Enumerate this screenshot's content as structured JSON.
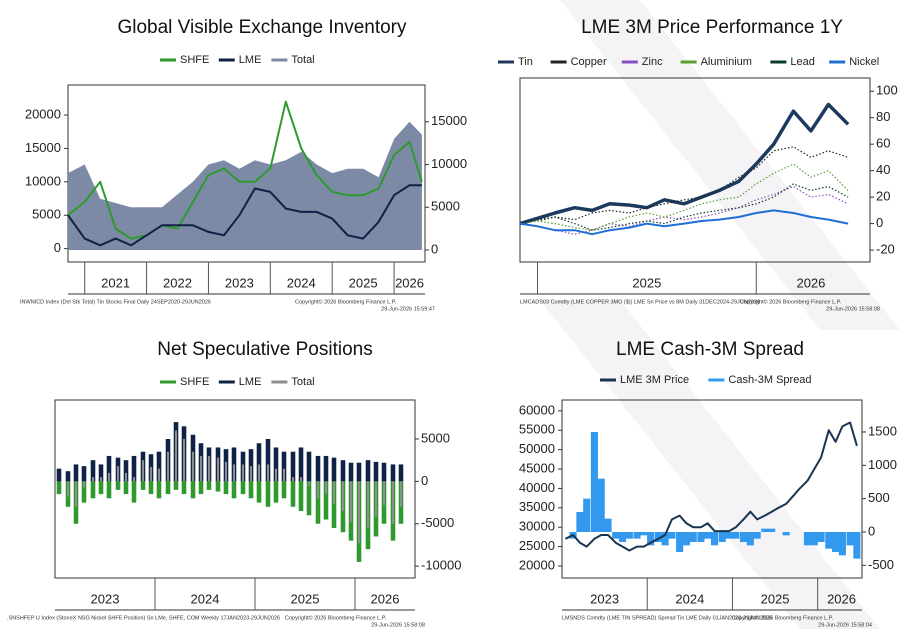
{
  "chart_data": [
    {
      "type": "line",
      "title": "Global Visible Exchange Inventory",
      "x": [
        2020.73,
        2021.0,
        2021.25,
        2021.5,
        2021.75,
        2022.0,
        2022.25,
        2022.5,
        2022.75,
        2023.0,
        2023.25,
        2023.5,
        2023.75,
        2024.0,
        2024.25,
        2024.5,
        2024.75,
        2025.0,
        2025.25,
        2025.5,
        2025.75,
        2026.0,
        2026.25,
        2026.45
      ],
      "series": [
        {
          "name": "SHFE",
          "color": "#2e9a2e",
          "style": "line",
          "values": [
            5000,
            7000,
            10000,
            3000,
            1500,
            2000,
            3500,
            3000,
            7000,
            11000,
            12000,
            10000,
            10000,
            12000,
            22000,
            15000,
            11000,
            8500,
            8000,
            8000,
            9000,
            14000,
            16000,
            10000
          ]
        },
        {
          "name": "LME",
          "color": "#0f2147",
          "style": "line",
          "values": [
            5000,
            1500,
            500,
            1500,
            500,
            2000,
            3500,
            3500,
            3500,
            2500,
            2000,
            5000,
            9000,
            8500,
            6000,
            5500,
            5500,
            4500,
            2000,
            1500,
            4000,
            8000,
            9500,
            9500
          ]
        },
        {
          "name": "Total",
          "color": "#7d8aa6",
          "style": "area",
          "axis": "y2",
          "values": [
            9000,
            10000,
            6000,
            5500,
            5000,
            5000,
            5000,
            6500,
            8000,
            10000,
            10500,
            9500,
            10500,
            10000,
            10500,
            11500,
            10000,
            9000,
            9500,
            9500,
            8500,
            13000,
            15000,
            13500
          ]
        }
      ],
      "xlim": [
        2020.73,
        2026.5
      ],
      "xticks": [
        {
          "value": 2021.5,
          "label": "2021"
        },
        {
          "value": 2022.5,
          "label": "2022"
        },
        {
          "value": 2023.5,
          "label": "2023"
        },
        {
          "value": 2024.5,
          "label": "2024"
        },
        {
          "value": 2025.5,
          "label": "2025"
        },
        {
          "value": 2026.25,
          "label": "2026"
        }
      ],
      "ylim": [
        -2000,
        24500
      ],
      "yticks": [
        0,
        5000,
        10000,
        15000,
        20000
      ],
      "y2lim": [
        -1400,
        19300
      ],
      "y2ticks": [
        0,
        5000,
        10000,
        15000
      ],
      "footnotes": [
        "INWNICD Index (Del Stk Total) Tin Stocks Final Daily 24SEP2020-29JUN2026",
        "Copyright© 2026 Bloomberg Finance L.P.",
        "29-Jun-2026 15:59:47"
      ]
    },
    {
      "type": "line",
      "title": "LME 3M Price Performance 1Y",
      "yaxis_side": "right",
      "x": [
        2024.92,
        2025.0,
        2025.08,
        2025.17,
        2025.25,
        2025.33,
        2025.42,
        2025.5,
        2025.58,
        2025.67,
        2025.75,
        2025.83,
        2025.92,
        2026.0,
        2026.08,
        2026.17,
        2026.25,
        2026.33,
        2026.42
      ],
      "series": [
        {
          "name": "Tin",
          "color": "#1b3a5e",
          "style": "thick",
          "values": [
            0,
            4,
            8,
            12,
            10,
            15,
            14,
            12,
            18,
            15,
            20,
            25,
            32,
            45,
            60,
            85,
            70,
            90,
            75
          ]
        },
        {
          "name": "Copper",
          "color": "#222222",
          "style": "dotted",
          "values": [
            0,
            2,
            5,
            3,
            8,
            10,
            8,
            12,
            15,
            18,
            20,
            25,
            35,
            42,
            55,
            58,
            50,
            55,
            50
          ]
        },
        {
          "name": "Zinc",
          "color": "#8a4fc0",
          "style": "dotted",
          "values": [
            0,
            -2,
            -5,
            -8,
            -5,
            0,
            -2,
            2,
            5,
            3,
            5,
            8,
            12,
            18,
            22,
            28,
            20,
            22,
            15
          ]
        },
        {
          "name": "Aluminium",
          "color": "#5aa02c",
          "style": "dotted",
          "values": [
            0,
            2,
            0,
            -3,
            -5,
            0,
            5,
            8,
            5,
            10,
            15,
            18,
            20,
            30,
            38,
            45,
            35,
            40,
            25
          ]
        },
        {
          "name": "Lead",
          "color": "#0d3b2a",
          "style": "dotted",
          "values": [
            0,
            3,
            5,
            0,
            -5,
            -3,
            0,
            2,
            0,
            5,
            8,
            10,
            12,
            15,
            20,
            30,
            25,
            28,
            20
          ]
        },
        {
          "name": "Nickel",
          "color": "#1f6fd6",
          "style": "line",
          "values": [
            0,
            -2,
            -5,
            -5,
            -8,
            -5,
            -3,
            0,
            -2,
            0,
            2,
            3,
            5,
            8,
            10,
            8,
            5,
            3,
            0
          ]
        }
      ],
      "xlim": [
        2024.92,
        2026.52
      ],
      "xticks": [
        {
          "value": 2025.5,
          "label": "2025"
        },
        {
          "value": 2026.25,
          "label": "2026"
        }
      ],
      "ylim": [
        -29,
        110
      ],
      "yticks": [
        -20,
        0,
        20,
        40,
        60,
        80,
        100
      ],
      "footnotes": [
        "LMCADS03 Comdty (LME COPPER   3MO ($)) LME Sn Price vs 8M Daily 31DEC2024-29JUN2026",
        "Copyright© 2026 Bloomberg Finance L.P.",
        "29-Jun-2026 15:58:08"
      ]
    },
    {
      "type": "bar",
      "title": "Net Speculative Positions",
      "yaxis_side": "right",
      "x": [
        2023.04,
        2023.13,
        2023.21,
        2023.29,
        2023.38,
        2023.46,
        2023.54,
        2023.63,
        2023.71,
        2023.79,
        2023.88,
        2023.96,
        2024.04,
        2024.13,
        2024.21,
        2024.29,
        2024.38,
        2024.46,
        2024.54,
        2024.63,
        2024.71,
        2024.79,
        2024.88,
        2024.96,
        2025.04,
        2025.13,
        2025.21,
        2025.29,
        2025.38,
        2025.46,
        2025.54,
        2025.63,
        2025.71,
        2025.79,
        2025.88,
        2025.96,
        2026.04,
        2026.13,
        2026.21,
        2026.29,
        2026.38,
        2026.46
      ],
      "series": [
        {
          "name": "SHFE",
          "color": "#2e9a2e",
          "values": [
            -1500,
            -3000,
            -5000,
            -2500,
            -2000,
            -1500,
            -2000,
            -1000,
            -1500,
            -2500,
            -1000,
            -1500,
            -2000,
            -1500,
            -1000,
            -1500,
            -2000,
            -1500,
            -1000,
            -1200,
            -1500,
            -2000,
            -1500,
            -2000,
            -2500,
            -3000,
            -2500,
            -2000,
            -3000,
            -3500,
            -4000,
            -5000,
            -4500,
            -5500,
            -6000,
            -7000,
            -9500,
            -8000,
            -6500,
            -5000,
            -7000,
            -5000
          ]
        },
        {
          "name": "LME",
          "color": "#0f2147",
          "values": [
            1500,
            1200,
            2000,
            1800,
            2500,
            2000,
            3000,
            2800,
            2500,
            3000,
            3500,
            3200,
            3500,
            5000,
            7000,
            6500,
            5500,
            4500,
            4000,
            4000,
            3800,
            4000,
            3500,
            3800,
            4500,
            5000,
            4000,
            3500,
            3500,
            4000,
            3500,
            3000,
            3000,
            2800,
            2500,
            2200,
            2200,
            2500,
            2300,
            2200,
            2000,
            2000
          ]
        },
        {
          "name": "Total",
          "color": "#8e8e8e",
          "style": "thin",
          "values": [
            0,
            -1800,
            -3000,
            -700,
            500,
            500,
            1000,
            1800,
            1000,
            500,
            2500,
            1700,
            1500,
            3500,
            6000,
            5000,
            3500,
            3000,
            3000,
            2800,
            2300,
            2000,
            2000,
            1800,
            2000,
            2000,
            1500,
            1500,
            500,
            500,
            -500,
            -2000,
            -1500,
            -2700,
            -3500,
            -4800,
            -7300,
            -5500,
            -4200,
            -2800,
            -5000,
            -3000
          ]
        }
      ],
      "xlim": [
        2023.0,
        2026.6
      ],
      "xticks": [
        {
          "value": 2023.5,
          "label": "2023"
        },
        {
          "value": 2024.5,
          "label": "2024"
        },
        {
          "value": 2025.5,
          "label": "2025"
        },
        {
          "value": 2026.3,
          "label": "2026"
        }
      ],
      "ylim": [
        -11400,
        9600
      ],
      "yticks": [
        -10000,
        -5000,
        0,
        5000
      ],
      "footnotes": [
        ".SNSHFEP U Index (StoneX NSG Nickel SHFE Position) Sn LMe, SHFE, COM Weekly 17JAN2023-29JUN2026",
        "Copyright© 2026 Bloomberg Finance L.P.",
        "29-Jun-2026 15:58:08"
      ]
    },
    {
      "type": "line",
      "title": "LME Cash-3M Spread",
      "x": [
        2023.04,
        2023.13,
        2023.21,
        2023.29,
        2023.38,
        2023.46,
        2023.54,
        2023.63,
        2023.71,
        2023.79,
        2023.88,
        2023.96,
        2024.04,
        2024.13,
        2024.21,
        2024.29,
        2024.38,
        2024.46,
        2024.54,
        2024.63,
        2024.71,
        2024.79,
        2024.88,
        2024.96,
        2025.04,
        2025.13,
        2025.21,
        2025.29,
        2025.38,
        2025.46,
        2025.54,
        2025.63,
        2025.71,
        2025.79,
        2025.88,
        2025.96,
        2026.04,
        2026.13,
        2026.21,
        2026.29,
        2026.38,
        2026.46
      ],
      "series": [
        {
          "name": "LME 3M Price",
          "color": "#1a3552",
          "style": "line",
          "values": [
            27000,
            28000,
            26000,
            25000,
            27000,
            28000,
            28000,
            26000,
            25000,
            24000,
            25000,
            25000,
            26000,
            27000,
            28000,
            32000,
            33000,
            31000,
            30000,
            30000,
            31000,
            29000,
            29000,
            29000,
            30000,
            32000,
            34000,
            32000,
            33000,
            34000,
            35000,
            36000,
            38000,
            40000,
            42000,
            45000,
            48000,
            55000,
            52000,
            56000,
            57000,
            51000
          ]
        },
        {
          "name": "Cash-3M Spread",
          "color": "#3399ee",
          "style": "bar",
          "axis": "y2",
          "values": [
            0,
            -100,
            300,
            500,
            1500,
            800,
            200,
            -100,
            -150,
            -100,
            -100,
            -50,
            -200,
            -150,
            -200,
            -100,
            -300,
            -200,
            -150,
            -150,
            -100,
            -200,
            -150,
            -100,
            -100,
            -150,
            -200,
            -100,
            50,
            50,
            0,
            -50,
            0,
            0,
            -200,
            -200,
            -150,
            -250,
            -300,
            -350,
            -200,
            -400
          ]
        }
      ],
      "xlim": [
        2023.0,
        2026.52
      ],
      "xticks": [
        {
          "value": 2023.5,
          "label": "2023"
        },
        {
          "value": 2024.5,
          "label": "2024"
        },
        {
          "value": 2025.5,
          "label": "2025"
        },
        {
          "value": 2026.28,
          "label": "2026"
        }
      ],
      "ylim": [
        16900,
        62800
      ],
      "yticks": [
        20000,
        25000,
        30000,
        35000,
        40000,
        45000,
        50000,
        55000,
        60000
      ],
      "y2lim": [
        -690,
        1980
      ],
      "y2ticks": [
        -500,
        0,
        500,
        1000,
        1500
      ],
      "footnotes": [
        "LMSNDS Comdty (LME TIN SPREAD) Spread Tin LME Daily 01JAN2023-29JUN2026",
        "Copyright© 2026 Bloomberg Finance L.P.",
        "29-Jun-2026 15:58:04"
      ]
    }
  ]
}
